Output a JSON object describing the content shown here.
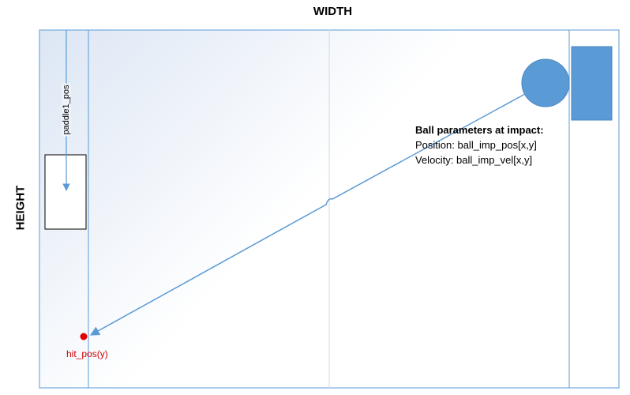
{
  "labels": {
    "width": "WIDTH",
    "height": "HEIGHT",
    "paddle_pos": "paddle1_pos",
    "hit_pos": "hit_pos(y)"
  },
  "impact_info": {
    "title": "Ball parameters at impact:",
    "position": "Position: ball_imp_pos[x,y]",
    "velocity": "Velocity: ball_imp_vel[x,y]"
  },
  "colors": {
    "line_blue": "#5b9bd5",
    "ball_fill": "#5b9bd5",
    "paddle_fill": "#5b9bd5",
    "hit_point": "#e00000",
    "hit_label": "#d00000",
    "center_line": "#d9d9d9"
  }
}
